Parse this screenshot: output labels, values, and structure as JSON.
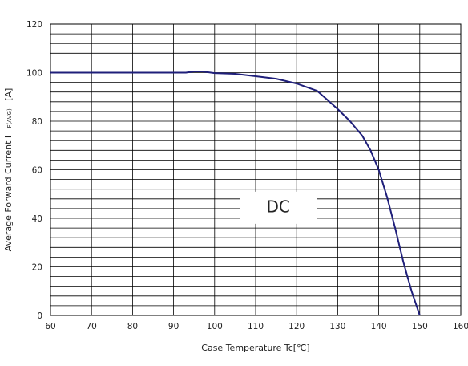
{
  "chart_data": {
    "type": "line",
    "title": "",
    "xlabel": "Case Temperature Tc[℃]",
    "ylabel_main": "Average Forward Current I",
    "ylabel_sub": "F(AVG)",
    "ylabel_unit": "[A]",
    "annotation": "DC",
    "xlim": [
      60,
      160
    ],
    "ylim": [
      0,
      120
    ],
    "x_ticks": [
      60,
      70,
      80,
      90,
      100,
      110,
      120,
      130,
      140,
      150,
      160
    ],
    "y_ticks": [
      0,
      20,
      40,
      60,
      80,
      100,
      120
    ],
    "x_tick_labels": [
      "60",
      "70",
      "80",
      "90",
      "100",
      "110",
      "120",
      "130",
      "140",
      "150",
      "160"
    ],
    "y_tick_labels": [
      "0",
      "20",
      "40",
      "60",
      "80",
      "100",
      "120"
    ],
    "grid": true,
    "series": [
      {
        "color": "#1f1f7a",
        "x": [
          60,
          90,
          93,
          95,
          97,
          100,
          105,
          110,
          115,
          120,
          125,
          128,
          130,
          133,
          136,
          138,
          140,
          142,
          144,
          146,
          148,
          150
        ],
        "y": [
          100,
          100,
          100,
          100.5,
          100.5,
          99.8,
          99.5,
          98.5,
          97.5,
          95.5,
          92.5,
          88,
          85,
          80,
          74,
          68,
          60,
          49,
          36,
          22,
          10,
          0
        ]
      }
    ]
  }
}
